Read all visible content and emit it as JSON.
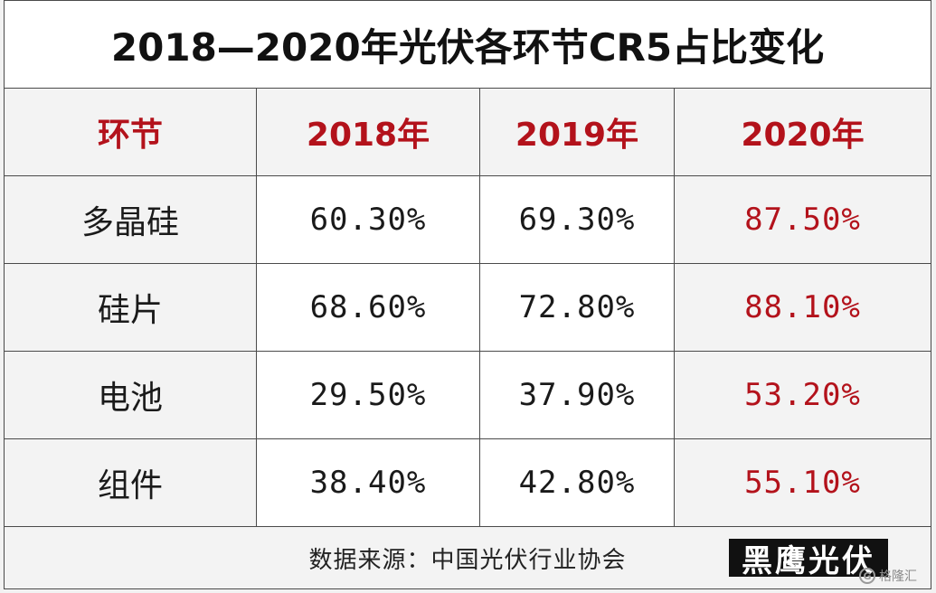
{
  "chart_data": {
    "type": "table",
    "title": "2018—2020年光伏各环节CR5占比变化",
    "columns": [
      "环节",
      "2018年",
      "2019年",
      "2020年"
    ],
    "rows": [
      [
        "多晶硅",
        "60.30%",
        "69.30%",
        "87.50%"
      ],
      [
        "硅片",
        "68.60%",
        "72.80%",
        "88.10%"
      ],
      [
        "电池",
        "29.50%",
        "37.90%",
        "53.20%"
      ],
      [
        "组件",
        "38.40%",
        "42.80%",
        "55.10%"
      ]
    ],
    "source": "数据来源：中国光伏行业协会"
  },
  "watermark": {
    "text": "黑鹰光伏",
    "brand": "格隆汇",
    "brand_icon": "G"
  },
  "colors": {
    "header_red": "#b3121b",
    "text_dark": "#1a1a1a"
  }
}
